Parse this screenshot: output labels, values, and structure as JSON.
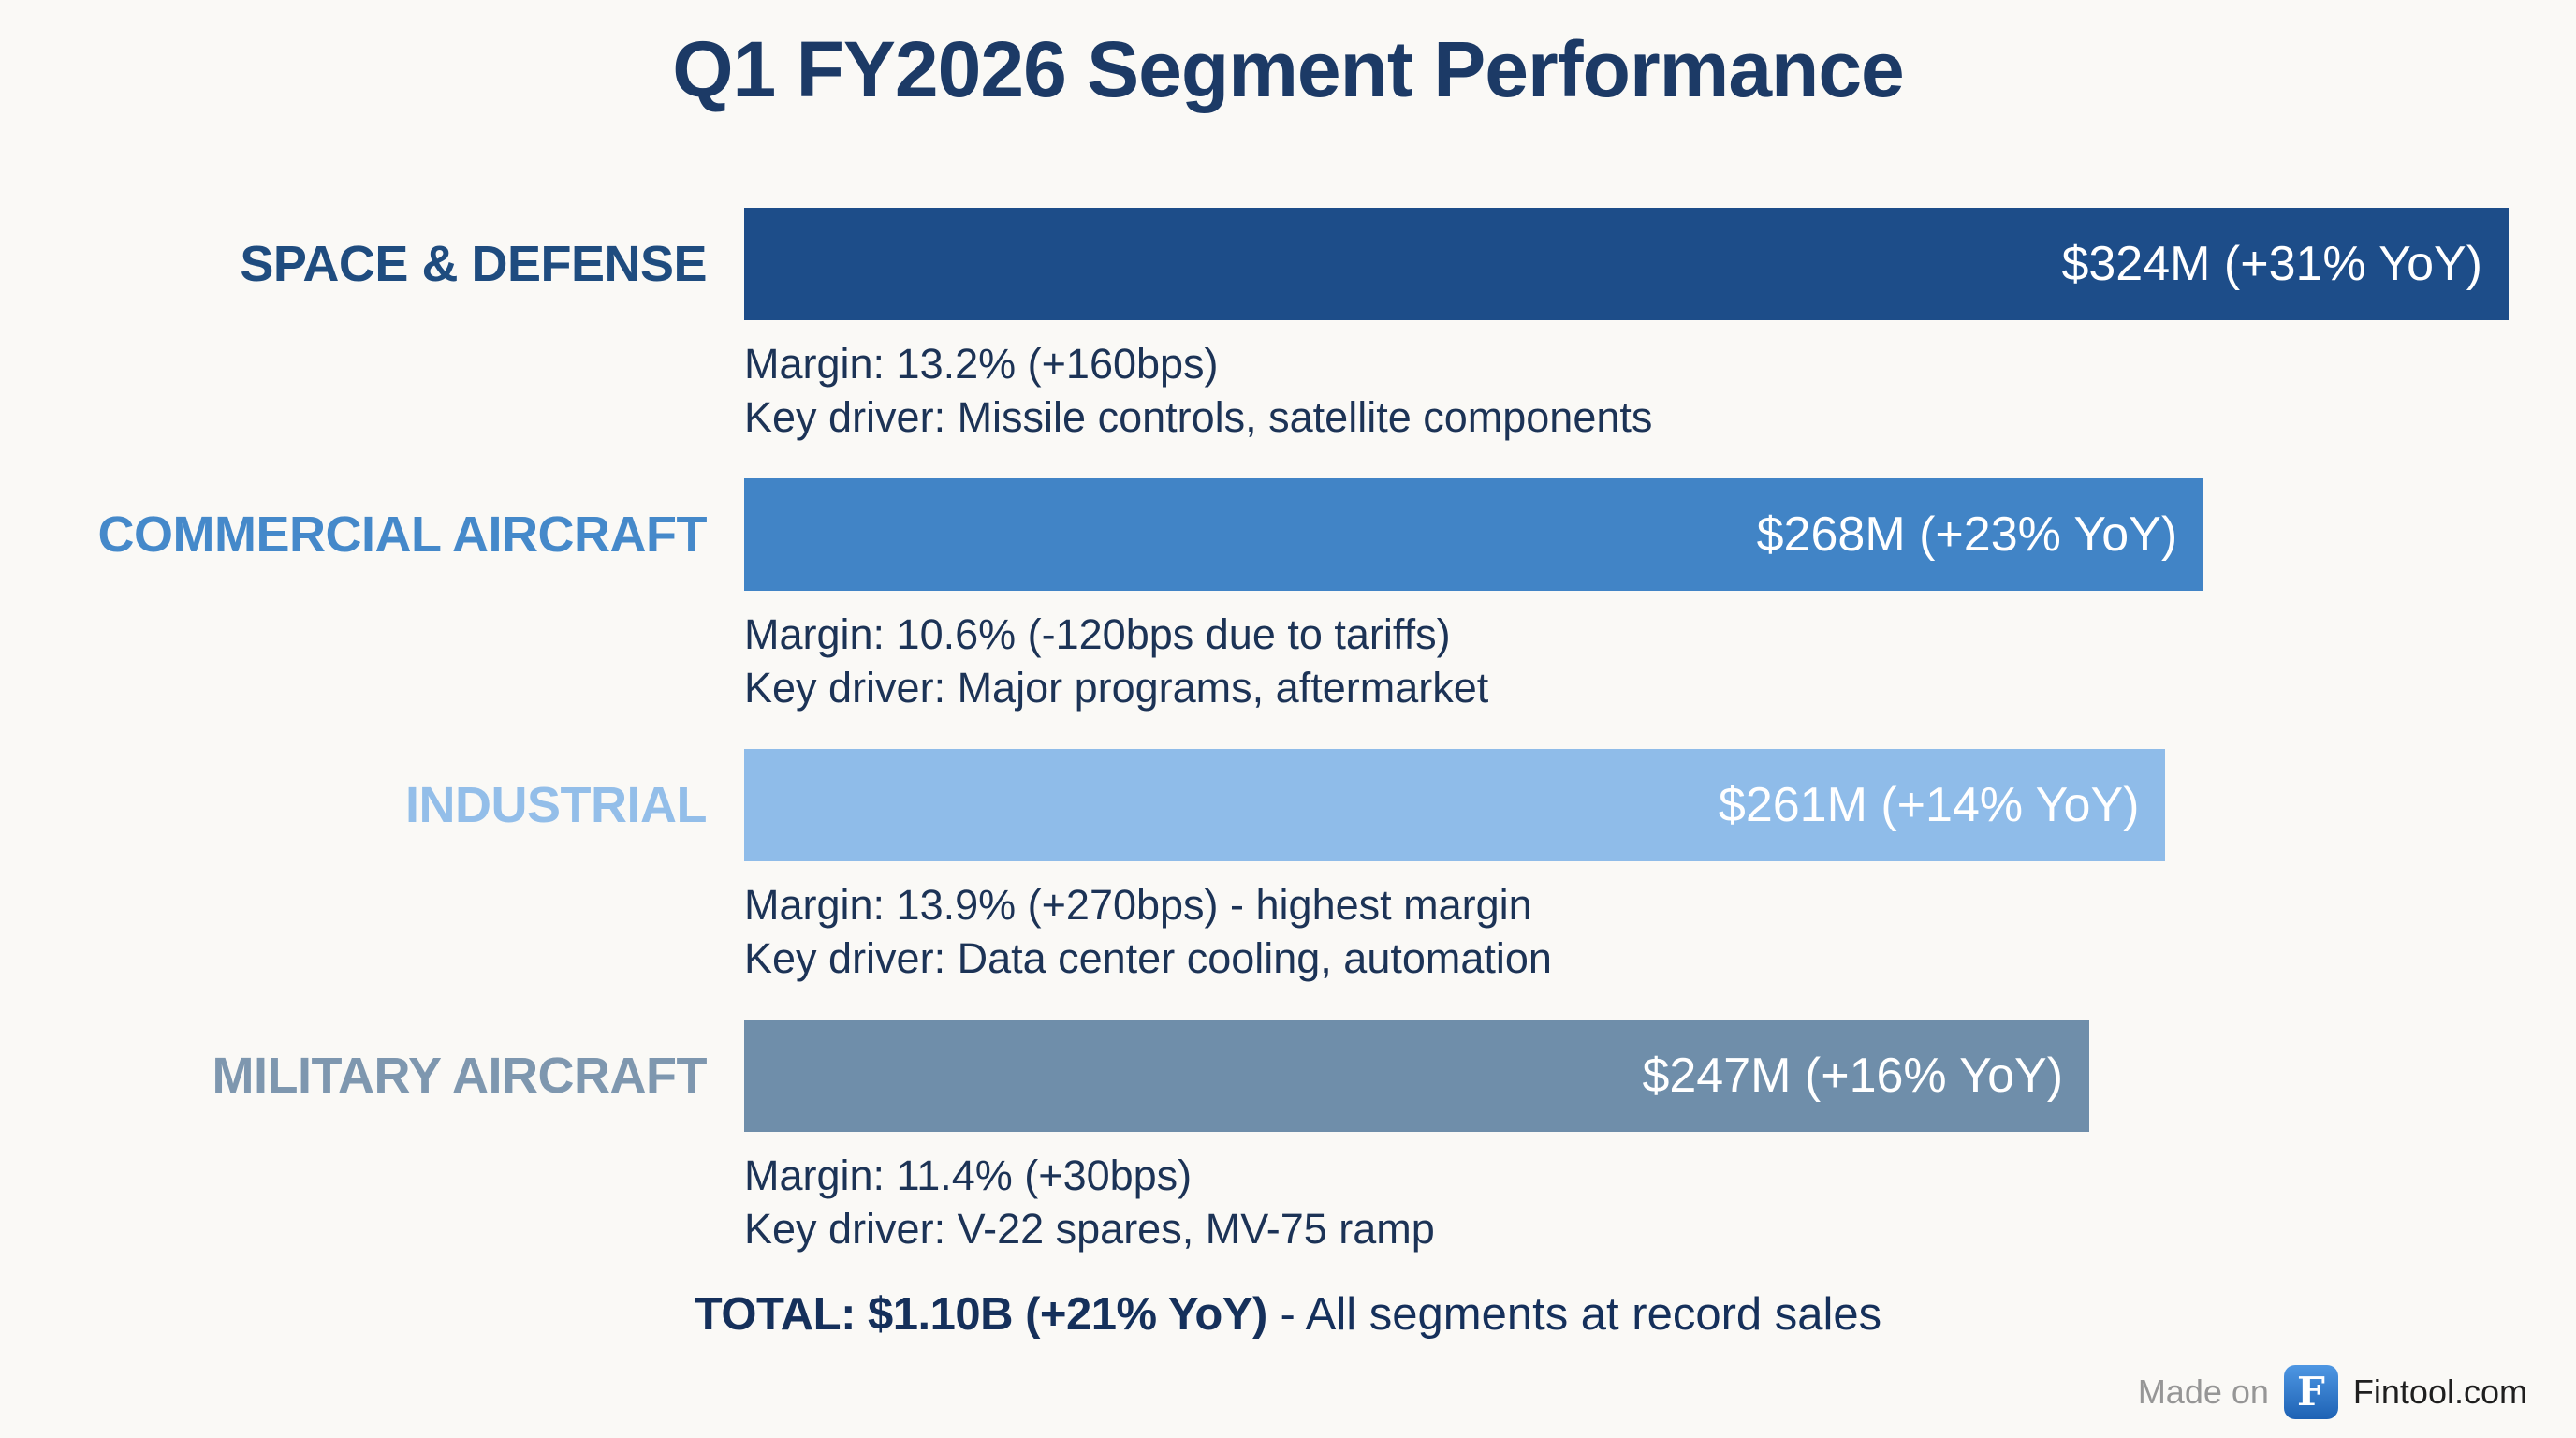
{
  "title": "Q1 FY2026 Segment Performance",
  "chart_data": {
    "type": "bar",
    "orientation": "horizontal",
    "title": "Q1 FY2026 Segment Performance",
    "xlim": [
      0,
      324
    ],
    "unit": "USD millions",
    "grid": false,
    "legend": false,
    "categories": [
      "SPACE & DEFENSE",
      "COMMERCIAL AIRCRAFT",
      "INDUSTRIAL",
      "MILITARY AIRCRAFT"
    ],
    "values": [
      324,
      268,
      261,
      247
    ],
    "yoy_growth_pct": [
      31,
      23,
      14,
      16
    ],
    "segments": [
      {
        "label": "SPACE & DEFENSE",
        "value_musd": 324,
        "value_label": "$324M (+31% YoY)",
        "margin_line": "Margin: 13.2% (+160bps)",
        "key_driver_line": "Key driver: Missile controls, satellite components",
        "bar_color": "#1D4D89",
        "label_color": "#1F4C7F"
      },
      {
        "label": "COMMERCIAL AIRCRAFT",
        "value_musd": 268,
        "value_label": "$268M (+23% YoY)",
        "margin_line": "Margin: 10.6% (-120bps due to tariffs)",
        "key_driver_line": "Key driver: Major programs, aftermarket",
        "bar_color": "#4184C6",
        "label_color": "#4589CA"
      },
      {
        "label": "INDUSTRIAL",
        "value_musd": 261,
        "value_label": "$261M (+14% YoY)",
        "margin_line": "Margin: 13.9% (+270bps) - highest margin",
        "key_driver_line": "Key driver: Data center cooling, automation",
        "bar_color": "#8FBCE9",
        "label_color": "#93BEE9"
      },
      {
        "label": "MILITARY AIRCRAFT",
        "value_musd": 247,
        "value_label": "$247M (+16% YoY)",
        "margin_line": "Margin: 11.4% (+30bps)",
        "key_driver_line": "Key driver: V-22 spares, MV-75 ramp",
        "bar_color": "#6F8EAA",
        "label_color": "#7E97AF"
      }
    ]
  },
  "total": {
    "bold": "TOTAL: $1.10B (+21% YoY)",
    "rest": " - All segments at record sales"
  },
  "footer": {
    "made_on": "Made on",
    "logo_letter": "F",
    "brand": "Fintool.com"
  },
  "colors": {
    "background": "#FAF9F6",
    "title_text": "#1C3A66",
    "body_text": "#1C3356",
    "bar_value_text": "#FFFFFF",
    "total_text": "#15305B",
    "made_on_text": "#969696",
    "brand_text": "#1F1F1F",
    "logo_blue": "#2E77D0"
  }
}
